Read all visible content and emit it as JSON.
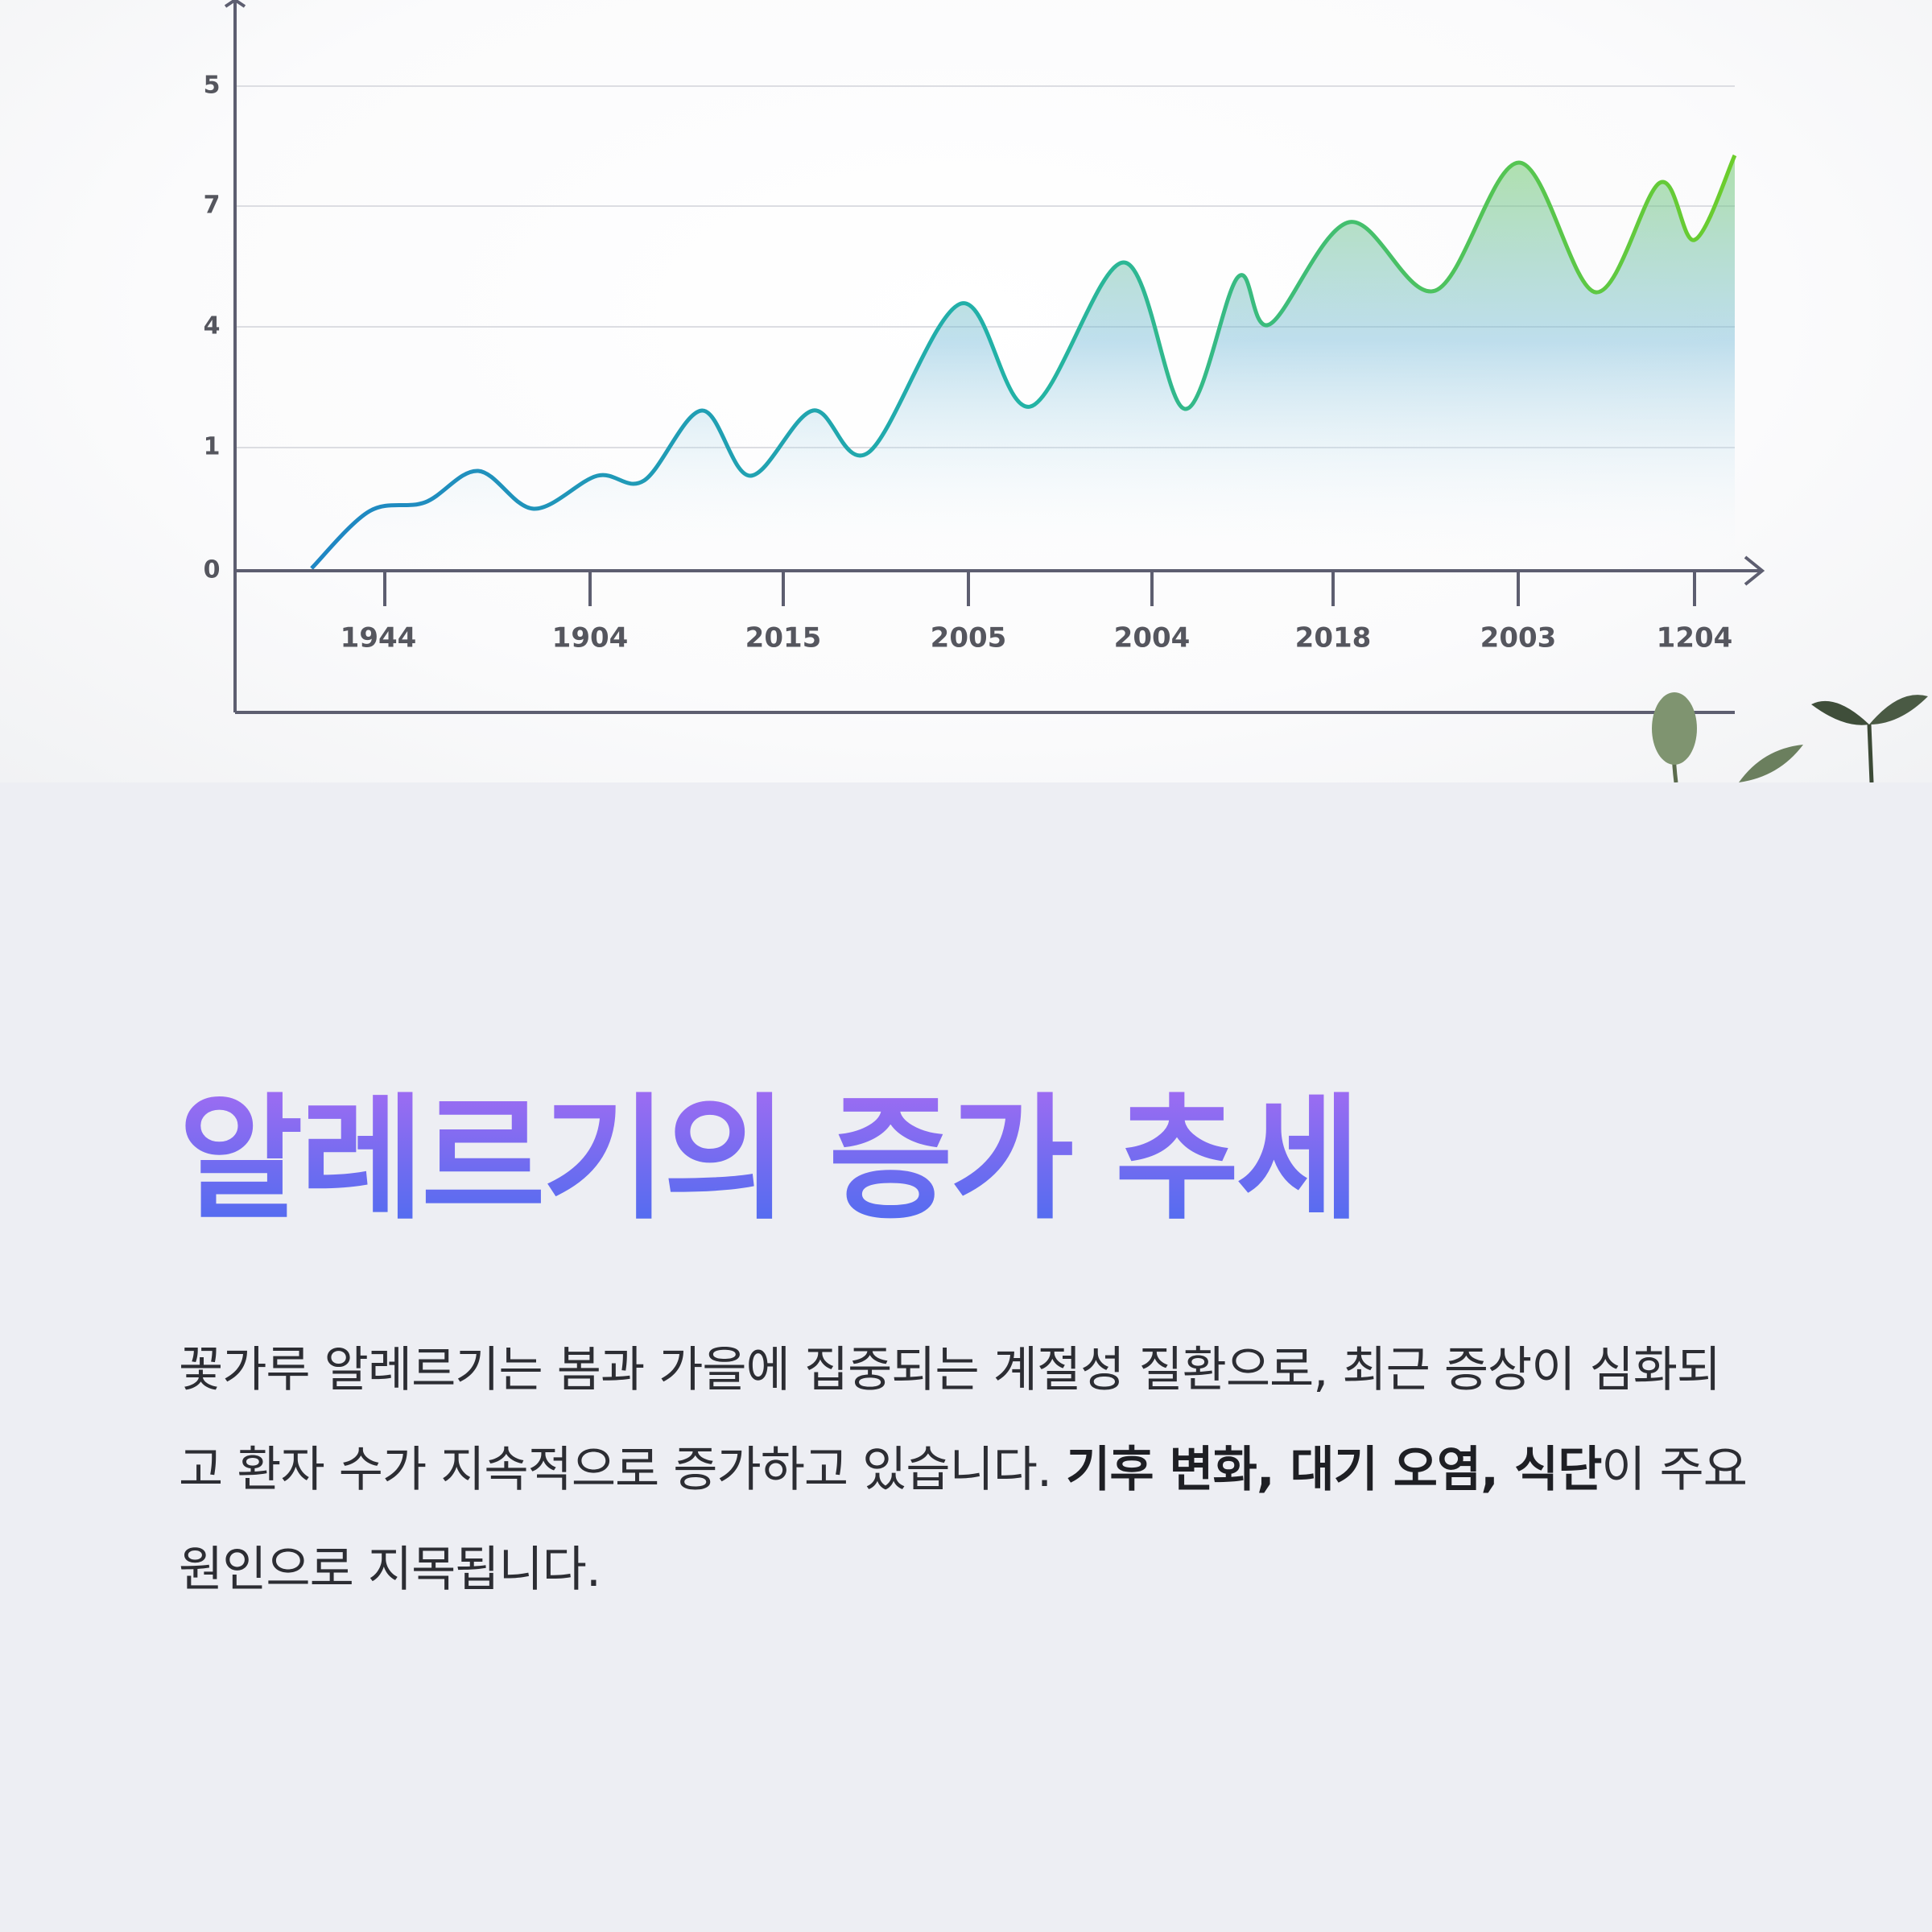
{
  "figure": {
    "y_labels": [
      "5",
      "7",
      "4",
      "1",
      "0"
    ],
    "x_labels": [
      "1944",
      "1904",
      "2015",
      "2005",
      "2004",
      "2018",
      "2003",
      "1204"
    ]
  },
  "title": "알레르기의 증가 추세",
  "body": {
    "text": "꽃가루 알레르기는 봄과 가을에 집중되는 계절성 질환으로, 최근 증상이 심화되고 환자 수가 지속적으로 증가하고 있습니다.",
    "bold": "기후 변화, 대기 오염, 식단",
    "tail": "이 주요 원인으로 지목됩니다."
  }
}
